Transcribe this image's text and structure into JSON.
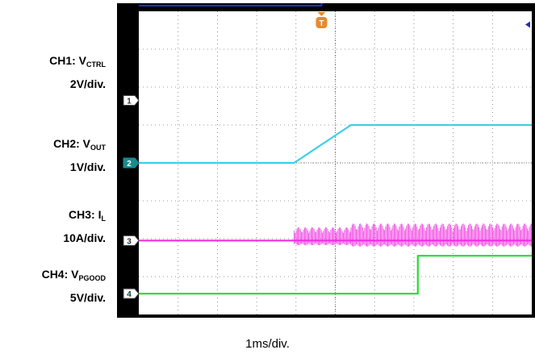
{
  "chart_data": {
    "type": "line",
    "title": "",
    "xlabel": "1ms/div.",
    "ylabel": "",
    "grid": true,
    "x_divisions": 10,
    "y_divisions": 8,
    "trigger_marker": "T",
    "channels": [
      {
        "id": "CH1",
        "label_main": "CH1: V",
        "label_sub": "CTRL",
        "scale": "2V/div.",
        "color": "#1f2fb8",
        "marker": "1",
        "points": [
          [
            0,
            5.0
          ],
          [
            4.65,
            5.0
          ],
          [
            4.65,
            7.5
          ],
          [
            17.5,
            7.5
          ]
        ]
      },
      {
        "id": "CH2",
        "label_main": "CH2: V",
        "label_sub": "OUT",
        "scale": "1V/div.",
        "color": "#3ad0e8",
        "marker": "2",
        "points": [
          [
            0,
            0.0
          ],
          [
            3.95,
            0.0
          ],
          [
            5.4,
            1.0
          ],
          [
            10,
            1.0
          ]
        ]
      },
      {
        "id": "CH3",
        "label_main": "CH3: I",
        "label_sub": "L",
        "scale": "10A/div.",
        "color": "#f030e0",
        "marker": "3",
        "points": [
          [
            0,
            0.0
          ],
          [
            10,
            0.0
          ]
        ],
        "ripple": [
          {
            "x_start": 3.95,
            "x_end": 5.4,
            "amplitude": 3.5
          },
          {
            "x_start": 5.4,
            "x_end": 10,
            "amplitude": 4.5
          }
        ]
      },
      {
        "id": "CH4",
        "label_main": "CH4: V",
        "label_sub": "PGOOD",
        "scale": "5V/div.",
        "color": "#22dd33",
        "marker": "4",
        "points": [
          [
            0,
            0.0
          ],
          [
            7.1,
            0.0
          ],
          [
            7.1,
            5.0
          ],
          [
            10,
            5.0
          ]
        ]
      }
    ]
  }
}
